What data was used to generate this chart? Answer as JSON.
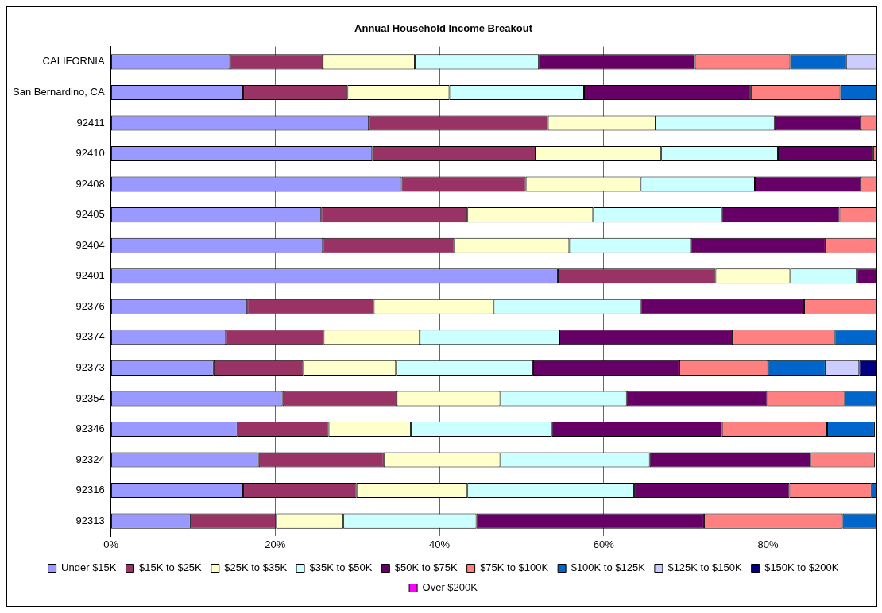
{
  "chart_data": {
    "type": "bar",
    "orientation": "horizontal",
    "stacked": true,
    "title": "Annual Household Income Breakout",
    "categories": [
      "CALIFORNIA",
      "San Bernardino, CA",
      "92411",
      "92410",
      "92408",
      "92405",
      "92404",
      "92401",
      "92376",
      "92374",
      "92373",
      "92354",
      "92346",
      "92324",
      "92316",
      "92313"
    ],
    "series": [
      {
        "name": "Under $15K",
        "color": "#9999ff",
        "values": [
          14.5,
          16.1,
          31.4,
          31.8,
          35.4,
          25.6,
          25.8,
          54.4,
          16.6,
          14.0,
          12.5,
          20.9,
          15.4,
          18.0,
          16.1,
          9.7
        ]
      },
      {
        "name": "$15K to $25K",
        "color": "#993366",
        "values": [
          11.3,
          12.7,
          21.8,
          19.9,
          15.1,
          17.8,
          16.0,
          19.2,
          15.4,
          11.9,
          10.9,
          13.9,
          11.1,
          15.2,
          13.8,
          10.4
        ]
      },
      {
        "name": "$25K to $35K",
        "color": "#ffffcc",
        "values": [
          11.2,
          12.4,
          13.1,
          15.3,
          14.0,
          15.3,
          14.0,
          9.1,
          14.6,
          11.7,
          11.3,
          12.6,
          10.0,
          14.2,
          13.5,
          8.2
        ]
      },
      {
        "name": "$35K to $50K",
        "color": "#ccffff",
        "values": [
          15.1,
          16.4,
          14.5,
          14.2,
          13.9,
          15.7,
          14.8,
          8.1,
          17.9,
          17.0,
          16.7,
          15.4,
          17.2,
          18.2,
          20.3,
          16.2
        ]
      },
      {
        "name": "$50K to $75K",
        "color": "#660066",
        "values": [
          19.0,
          20.3,
          10.5,
          11.6,
          12.9,
          14.3,
          16.4,
          2.4,
          19.9,
          21.1,
          17.8,
          17.1,
          20.7,
          19.6,
          18.9,
          27.7
        ]
      },
      {
        "name": "$75K to $100K",
        "color": "#ff8080",
        "values": [
          11.6,
          10.9,
          1.9,
          0.4,
          1.9,
          4.5,
          6.2,
          null,
          8.8,
          12.4,
          10.8,
          9.4,
          12.8,
          7.8,
          10.0,
          16.9
        ]
      },
      {
        "name": "$100K to $125K",
        "color": "#0066cc",
        "values": [
          6.8,
          4.4,
          null,
          null,
          null,
          null,
          null,
          null,
          null,
          5.1,
          7.0,
          3.9,
          5.8,
          null,
          0.6,
          4.1
        ]
      },
      {
        "name": "$125K to $150K",
        "color": "#ccccff",
        "values": [
          3.7,
          null,
          null,
          null,
          null,
          null,
          null,
          null,
          null,
          null,
          4.1,
          null,
          null,
          null,
          null,
          null
        ]
      },
      {
        "name": "$150K to $200K",
        "color": "#000080",
        "values": [
          null,
          null,
          null,
          null,
          null,
          null,
          null,
          null,
          null,
          null,
          2.1,
          null,
          null,
          null,
          null,
          null
        ]
      },
      {
        "name": "Over $200K",
        "color": "#ff00ff",
        "values": [
          null,
          null,
          null,
          null,
          null,
          null,
          null,
          null,
          null,
          null,
          null,
          null,
          null,
          null,
          null,
          null
        ]
      }
    ],
    "xlim": [
      0,
      93.2
    ],
    "xticks": [
      {
        "value": 0,
        "label": "0%"
      },
      {
        "value": 20,
        "label": "20%"
      },
      {
        "value": 40,
        "label": "40%"
      },
      {
        "value": 60,
        "label": "60%"
      },
      {
        "value": 80,
        "label": "80%"
      }
    ],
    "grid": "x",
    "legend": "bottom"
  }
}
